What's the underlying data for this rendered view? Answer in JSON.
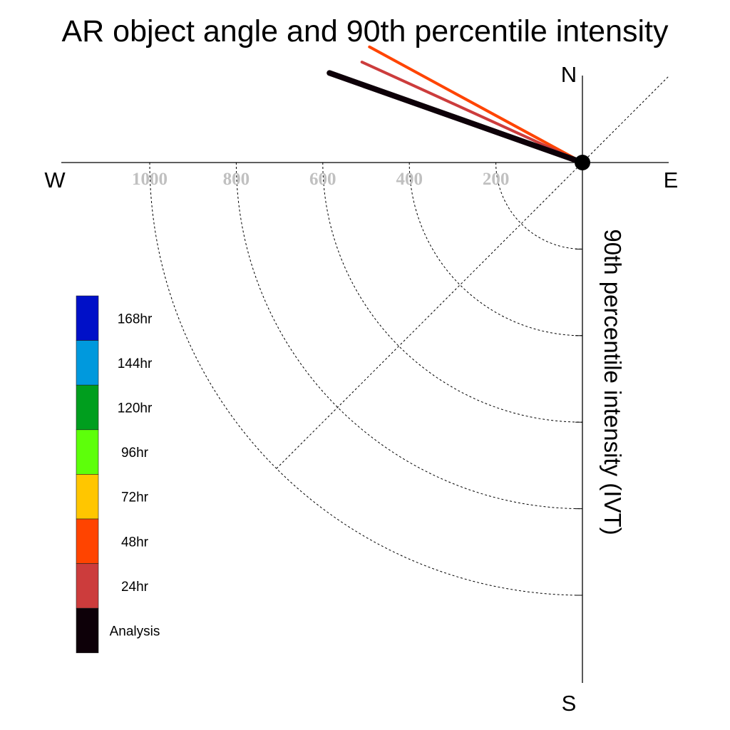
{
  "chart_data": {
    "type": "polar-vector",
    "title": "AR object angle and 90th percentile intensity",
    "ylabel": "90th percentile intensity (IVT)",
    "compass": {
      "north": "N",
      "south": "S",
      "east": "E",
      "west": "W"
    },
    "radial_ticks": [
      1000,
      800,
      600,
      400,
      200
    ],
    "radial_tick_labels": [
      "1000",
      "800",
      "600",
      "400",
      "200"
    ],
    "rmax": 1200,
    "grid": true,
    "series": [
      {
        "name": "Analysis",
        "color": "#0d0008",
        "angle_deg": 160.5,
        "intensity": 620
      },
      {
        "name": "24hr",
        "color": "#cc3c3c",
        "angle_deg": 155.5,
        "intensity": 560
      },
      {
        "name": "48hr",
        "color": "#ff4400",
        "angle_deg": 151.5,
        "intensity": 560
      }
    ],
    "legend": {
      "position": "left",
      "entries": [
        {
          "label": "168hr",
          "color": "#0010c8"
        },
        {
          "label": "144hr",
          "color": "#0099dd"
        },
        {
          "label": "120hr",
          "color": "#009e1e"
        },
        {
          "label": "96hr",
          "color": "#5dff0a"
        },
        {
          "label": "72hr",
          "color": "#ffc600"
        },
        {
          "label": "48hr",
          "color": "#ff4400"
        },
        {
          "label": "24hr",
          "color": "#cc3c3c"
        },
        {
          "label": "Analysis",
          "color": "#0d0008"
        }
      ]
    }
  }
}
